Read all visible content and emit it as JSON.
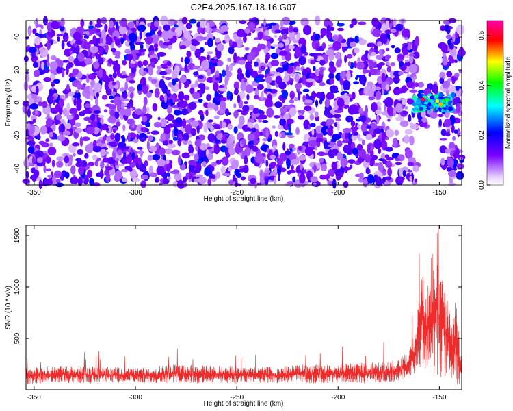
{
  "title": "C2E4.2025.167.18.16.G07",
  "colors": {
    "snr_line": "#ee2c2c",
    "background": "#ffffff"
  },
  "chart_data": [
    {
      "type": "heatmap",
      "title": "C2E4.2025.167.18.16.G07",
      "xlabel": "Height of straight line (km)",
      "ylabel": "Frequency (Hz)",
      "xlim": [
        -354,
        -139
      ],
      "ylim": [
        -50,
        50
      ],
      "x_ticks": [
        -350,
        -300,
        -250,
        -200,
        -150
      ],
      "y_ticks": [
        -40,
        -20,
        0,
        20,
        40
      ],
      "colorbar": {
        "label": "Normalized spectral amplitude",
        "range": [
          0,
          0.66
        ],
        "ticks": [
          0,
          0.2,
          0.4,
          0.6
        ],
        "tick_labels": [
          "0.0",
          "0.2",
          "0.4",
          "0.6"
        ],
        "colormap": "rainbow (white-violet-blue-cyan-green-yellow-red-magenta)"
      },
      "notable_features": [
        {
          "x_range": [
            -163,
            -143
          ],
          "y_range": [
            -5,
            5
          ],
          "peak_value": 0.66,
          "note": "strong signal band near 0 Hz"
        },
        {
          "x_range": [
            -161,
            -149
          ],
          "y_range": [
            -50,
            -15
          ],
          "note": "empty region (no data)"
        },
        {
          "x_range": [
            -161,
            -149
          ],
          "y_range": [
            12,
            50
          ],
          "note": "empty region (no data)"
        }
      ],
      "background_level": 0.06
    },
    {
      "type": "line",
      "xlabel": "Height of straight line (km)",
      "ylabel": "SNR (10 * v/v)",
      "xlim": [
        -354,
        -139
      ],
      "ylim": [
        0,
        1600
      ],
      "x_ticks": [
        -350,
        -300,
        -250,
        -200,
        -150
      ],
      "y_ticks": [
        500,
        1000,
        1500
      ],
      "series": [
        {
          "color": "#ee2c2c",
          "x": [
            -354,
            -340,
            -320,
            -300,
            -290,
            -280,
            -270,
            -260,
            -250,
            -240,
            -230,
            -220,
            -210,
            -200,
            -190,
            -180,
            -170,
            -165,
            -162,
            -160,
            -158,
            -156,
            -154,
            -152,
            -151,
            -150,
            -148,
            -146,
            -144,
            -142,
            -140,
            -139
          ],
          "y": [
            220,
            230,
            225,
            215,
            230,
            250,
            240,
            235,
            230,
            225,
            220,
            240,
            250,
            255,
            260,
            270,
            290,
            380,
            600,
            900,
            1200,
            1000,
            1300,
            1450,
            1580,
            1300,
            1100,
            900,
            700,
            900,
            500,
            300
          ],
          "min_envelope": [
            50,
            70,
            60,
            70,
            60,
            70,
            60,
            70,
            60,
            70,
            60,
            70,
            60,
            70,
            60,
            70,
            80,
            100,
            150,
            200,
            250,
            180,
            150,
            80,
            40,
            60,
            100,
            150,
            100,
            50,
            40,
            30
          ]
        }
      ]
    }
  ]
}
